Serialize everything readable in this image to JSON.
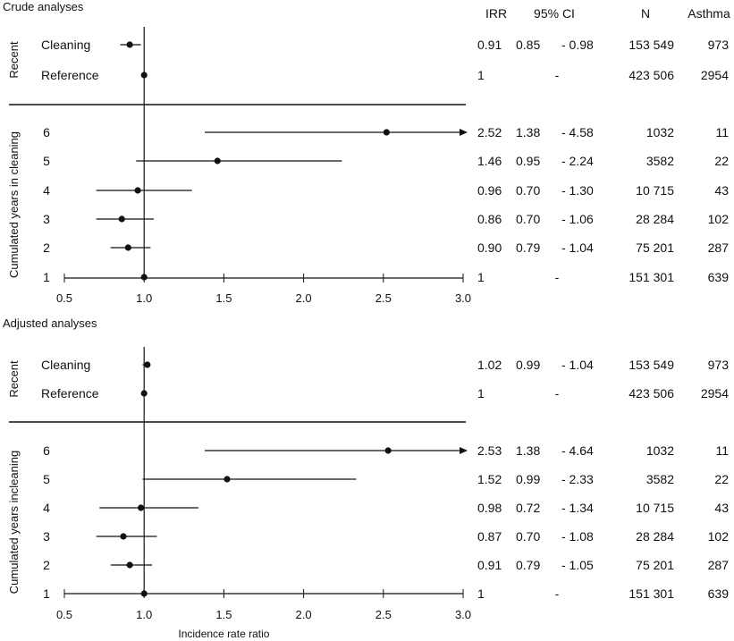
{
  "chart_data": [
    {
      "type": "forest",
      "title": "Crude analyses",
      "xlim": [
        0.5,
        3.0
      ],
      "ticks": [
        0.5,
        1.0,
        1.5,
        2.0,
        2.5,
        3.0
      ],
      "tick_labels": [
        "0.5",
        "1.0",
        "1.5",
        "2.0",
        "2.5",
        "3.0"
      ],
      "reference_line": 1.0,
      "xlabel": "",
      "columns": [
        "IRR",
        "95% CI",
        "N",
        "Asthma"
      ],
      "groups": [
        {
          "label": "Recent",
          "rows": [
            {
              "label": "Cleaning",
              "est": 0.91,
              "lo": 0.85,
              "hi": 0.98,
              "arrow": false,
              "irr": "0.91",
              "ci_lo": "0.85",
              "ci_hi": "- 0.98",
              "n": "153 549",
              "asthma": "973"
            },
            {
              "label": "Reference",
              "est": 1.0,
              "lo": null,
              "hi": null,
              "arrow": false,
              "irr": "1",
              "ci_lo": "",
              "ci_hi": "-",
              "n": "423 506",
              "asthma": "2954"
            }
          ]
        },
        {
          "label": "Cumulated years in cleaning",
          "rows": [
            {
              "label": "6",
              "est": 2.52,
              "lo": 1.38,
              "hi": 4.58,
              "arrow": true,
              "irr": "2.52",
              "ci_lo": "1.38",
              "ci_hi": "- 4.58",
              "n": "1032",
              "asthma": "11"
            },
            {
              "label": "5",
              "est": 1.46,
              "lo": 0.95,
              "hi": 2.24,
              "arrow": false,
              "irr": "1.46",
              "ci_lo": "0.95",
              "ci_hi": "- 2.24",
              "n": "3582",
              "asthma": "22"
            },
            {
              "label": "4",
              "est": 0.96,
              "lo": 0.7,
              "hi": 1.3,
              "arrow": false,
              "irr": "0.96",
              "ci_lo": "0.70",
              "ci_hi": "- 1.30",
              "n": "10 715",
              "asthma": "43"
            },
            {
              "label": "3",
              "est": 0.86,
              "lo": 0.7,
              "hi": 1.06,
              "arrow": false,
              "irr": "0.86",
              "ci_lo": "0.70",
              "ci_hi": "- 1.06",
              "n": "28 284",
              "asthma": "102"
            },
            {
              "label": "2",
              "est": 0.9,
              "lo": 0.79,
              "hi": 1.04,
              "arrow": false,
              "irr": "0.90",
              "ci_lo": "0.79",
              "ci_hi": "- 1.04",
              "n": "75 201",
              "asthma": "287"
            },
            {
              "label": "1",
              "est": 1.0,
              "lo": null,
              "hi": null,
              "arrow": false,
              "irr": "1",
              "ci_lo": "",
              "ci_hi": "-",
              "n": "151 301",
              "asthma": "639"
            }
          ]
        }
      ]
    },
    {
      "type": "forest",
      "title": "Adjusted analyses",
      "xlim": [
        0.5,
        3.0
      ],
      "ticks": [
        0.5,
        1.0,
        1.5,
        2.0,
        2.5,
        3.0
      ],
      "tick_labels": [
        "0.5",
        "1.0",
        "1.5",
        "2.0",
        "2.5",
        "3.0"
      ],
      "reference_line": 1.0,
      "xlabel": "Incidence rate ratio",
      "columns": [],
      "groups": [
        {
          "label": "Recent",
          "rows": [
            {
              "label": "Cleaning",
              "est": 1.02,
              "lo": 0.99,
              "hi": 1.04,
              "arrow": false,
              "irr": "1.02",
              "ci_lo": "0.99",
              "ci_hi": "- 1.04",
              "n": "153 549",
              "asthma": "973"
            },
            {
              "label": "Reference",
              "est": 1.0,
              "lo": null,
              "hi": null,
              "arrow": false,
              "irr": "1",
              "ci_lo": "",
              "ci_hi": "-",
              "n": "423 506",
              "asthma": "2954"
            }
          ]
        },
        {
          "label": "Cumulated years incleaning",
          "rows": [
            {
              "label": "6",
              "est": 2.53,
              "lo": 1.38,
              "hi": 4.64,
              "arrow": true,
              "irr": "2.53",
              "ci_lo": "1.38",
              "ci_hi": "- 4.64",
              "n": "1032",
              "asthma": "11"
            },
            {
              "label": "5",
              "est": 1.52,
              "lo": 0.99,
              "hi": 2.33,
              "arrow": false,
              "irr": "1.52",
              "ci_lo": "0.99",
              "ci_hi": "- 2.33",
              "n": "3582",
              "asthma": "22"
            },
            {
              "label": "4",
              "est": 0.98,
              "lo": 0.72,
              "hi": 1.34,
              "arrow": false,
              "irr": "0.98",
              "ci_lo": "0.72",
              "ci_hi": "- 1.34",
              "n": "10 715",
              "asthma": "43"
            },
            {
              "label": "3",
              "est": 0.87,
              "lo": 0.7,
              "hi": 1.08,
              "arrow": false,
              "irr": "0.87",
              "ci_lo": "0.70",
              "ci_hi": "- 1.08",
              "n": "28 284",
              "asthma": "102"
            },
            {
              "label": "2",
              "est": 0.91,
              "lo": 0.79,
              "hi": 1.05,
              "arrow": false,
              "irr": "0.91",
              "ci_lo": "0.79",
              "ci_hi": "- 1.05",
              "n": "75 201",
              "asthma": "287"
            },
            {
              "label": "1",
              "est": 1.0,
              "lo": null,
              "hi": null,
              "arrow": false,
              "irr": "1",
              "ci_lo": "",
              "ci_hi": "-",
              "n": "151 301",
              "asthma": "639"
            }
          ]
        }
      ]
    }
  ]
}
